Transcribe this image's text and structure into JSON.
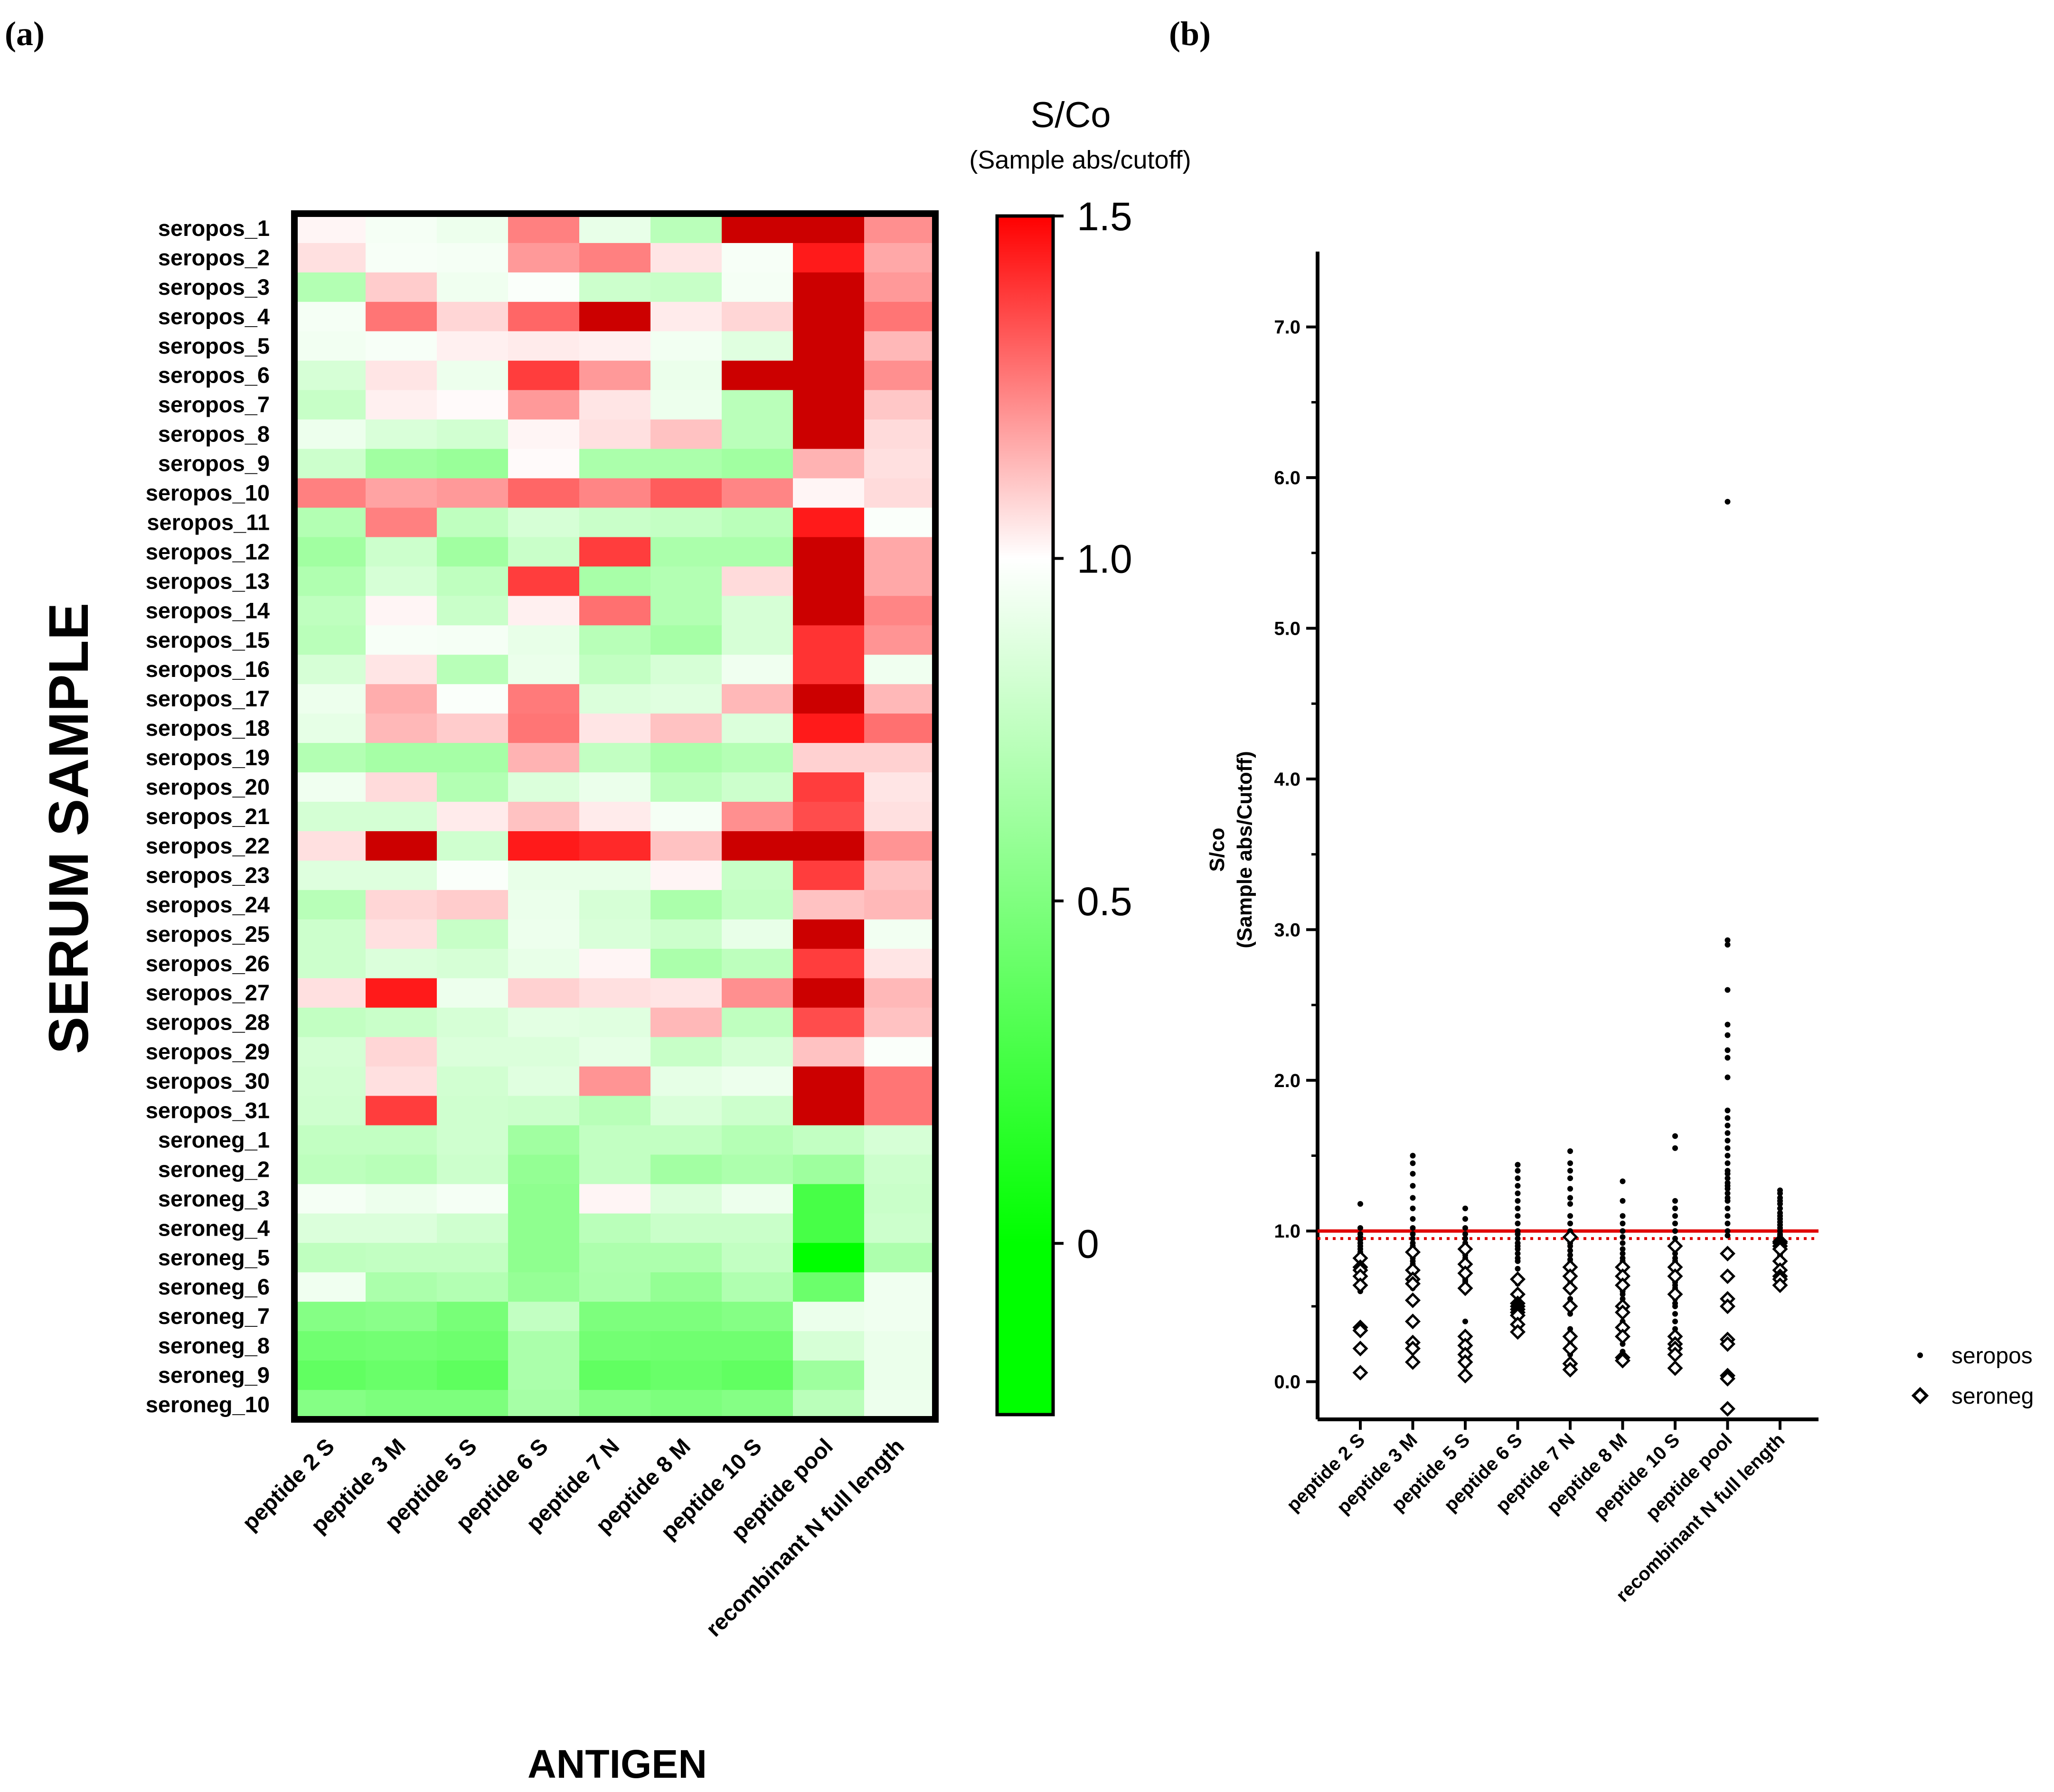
{
  "panel_labels": {
    "a": "(a)",
    "b": "(b)"
  },
  "chart_data": [
    {
      "type": "heatmap",
      "ylabel": "SERUM SAMPLE",
      "xlabel": "ANTIGEN",
      "colorbar": {
        "title": "S/Co",
        "subtitle": "(Sample abs/cutoff)",
        "ticks": [
          "1.5",
          "1.0",
          "0.5",
          "0"
        ],
        "tick_values": [
          1.5,
          1.0,
          0.5,
          0
        ],
        "range": [
          -0.25,
          1.5
        ],
        "colors": {
          "low": "#00ff00",
          "mid": "#ffffff",
          "high": "#ff0000",
          "over": "#cc0000"
        }
      },
      "columns": [
        "peptide 2 S",
        "peptide 3 M",
        "peptide 5 S",
        "peptide 6 S",
        "peptide 7 N",
        "peptide 8 M",
        "peptide 10 S",
        "peptide pool",
        "recombinant N full length"
      ],
      "rows": [
        "seropos_1",
        "seropos_2",
        "seropos_3",
        "seropos_4",
        "seropos_5",
        "seropos_6",
        "seropos_7",
        "seropos_8",
        "seropos_9",
        "seropos_10",
        "seropos_11",
        "seropos_12",
        "seropos_13",
        "seropos_14",
        "seropos_15",
        "seropos_16",
        "seropos_17",
        "seropos_18",
        "seropos_19",
        "seropos_20",
        "seropos_21",
        "seropos_22",
        "seropos_23",
        "seropos_24",
        "seropos_25",
        "seropos_26",
        "seropos_27",
        "seropos_28",
        "seropos_29",
        "seropos_30",
        "seropos_31",
        "seroneg_1",
        "seroneg_2",
        "seroneg_3",
        "seroneg_4",
        "seroneg_5",
        "seroneg_6",
        "seroneg_7",
        "seroneg_8",
        "seroneg_9",
        "seroneg_10"
      ],
      "values": [
        [
          1.02,
          0.96,
          0.93,
          1.25,
          0.91,
          0.73,
          1.6,
          1.6,
          1.22
        ],
        [
          1.06,
          0.97,
          0.96,
          1.2,
          1.25,
          1.05,
          0.97,
          1.45,
          1.17
        ],
        [
          0.7,
          1.1,
          0.94,
          0.98,
          0.8,
          0.78,
          0.96,
          1.6,
          1.2
        ],
        [
          0.96,
          1.27,
          1.08,
          1.3,
          1.6,
          1.04,
          1.08,
          1.6,
          1.27
        ],
        [
          0.95,
          0.97,
          1.03,
          1.04,
          1.03,
          0.95,
          0.88,
          1.6,
          1.14
        ],
        [
          0.84,
          1.05,
          0.93,
          1.38,
          1.2,
          0.92,
          1.6,
          1.6,
          1.22
        ],
        [
          0.78,
          1.03,
          1.01,
          1.2,
          1.05,
          0.93,
          0.73,
          1.6,
          1.11
        ],
        [
          0.93,
          0.85,
          0.82,
          1.02,
          1.06,
          1.12,
          0.73,
          1.6,
          1.07
        ],
        [
          0.8,
          0.63,
          0.6,
          1.01,
          0.67,
          0.67,
          0.63,
          1.15,
          1.06
        ],
        [
          1.25,
          1.18,
          1.2,
          1.3,
          1.24,
          1.32,
          1.24,
          1.02,
          1.07
        ],
        [
          0.7,
          1.25,
          0.75,
          0.84,
          0.79,
          0.77,
          0.73,
          1.45,
          0.98
        ],
        [
          0.63,
          0.8,
          0.63,
          0.79,
          1.38,
          0.67,
          0.67,
          1.6,
          1.17
        ],
        [
          0.69,
          0.84,
          0.75,
          1.38,
          0.66,
          0.7,
          1.07,
          1.6,
          1.17
        ],
        [
          0.75,
          1.02,
          0.79,
          1.03,
          1.28,
          0.7,
          0.84,
          1.6,
          1.24
        ],
        [
          0.73,
          0.97,
          0.96,
          0.91,
          0.72,
          0.65,
          0.84,
          1.4,
          1.21
        ],
        [
          0.84,
          1.05,
          0.72,
          0.92,
          0.76,
          0.84,
          0.94,
          1.4,
          0.94
        ],
        [
          0.93,
          1.16,
          0.98,
          1.26,
          0.86,
          0.88,
          1.14,
          1.6,
          1.14
        ],
        [
          0.9,
          1.14,
          1.1,
          1.27,
          1.05,
          1.12,
          0.86,
          1.45,
          1.28
        ],
        [
          0.7,
          0.65,
          0.65,
          1.15,
          0.76,
          0.67,
          0.71,
          1.09,
          1.09
        ],
        [
          0.94,
          1.07,
          0.7,
          0.86,
          0.92,
          0.74,
          0.8,
          1.38,
          1.05
        ],
        [
          0.83,
          0.83,
          1.04,
          1.12,
          1.04,
          0.96,
          1.22,
          1.35,
          1.06
        ],
        [
          1.06,
          1.6,
          0.81,
          1.45,
          1.42,
          1.12,
          1.6,
          1.6,
          1.21
        ],
        [
          0.87,
          0.87,
          0.98,
          0.91,
          0.91,
          1.02,
          0.78,
          1.38,
          1.12
        ],
        [
          0.72,
          1.08,
          1.1,
          0.92,
          0.84,
          0.67,
          0.76,
          1.12,
          1.14
        ],
        [
          0.8,
          1.06,
          0.78,
          0.93,
          0.85,
          0.8,
          0.91,
          1.6,
          0.95
        ],
        [
          0.8,
          0.86,
          0.84,
          0.91,
          1.02,
          0.67,
          0.74,
          1.38,
          1.05
        ],
        [
          1.06,
          1.45,
          0.93,
          1.09,
          1.06,
          1.05,
          1.22,
          1.6,
          1.14
        ],
        [
          0.76,
          0.79,
          0.84,
          0.89,
          0.88,
          1.14,
          0.75,
          1.35,
          1.12
        ],
        [
          0.83,
          1.08,
          0.86,
          0.86,
          0.9,
          0.78,
          0.84,
          1.12,
          0.98
        ],
        [
          0.82,
          1.06,
          0.82,
          0.88,
          1.21,
          0.9,
          0.93,
          1.6,
          1.27
        ],
        [
          0.81,
          1.38,
          0.81,
          0.8,
          0.72,
          0.85,
          0.8,
          1.6,
          1.27
        ],
        [
          0.76,
          0.76,
          0.81,
          0.63,
          0.76,
          0.76,
          0.71,
          0.76,
          0.84
        ],
        [
          0.74,
          0.72,
          0.8,
          0.58,
          0.76,
          0.64,
          0.68,
          0.62,
          0.8
        ],
        [
          0.96,
          0.93,
          0.96,
          0.56,
          1.02,
          0.86,
          0.93,
          0.28,
          0.79
        ],
        [
          0.86,
          0.86,
          0.81,
          0.56,
          0.73,
          0.79,
          0.79,
          0.28,
          0.8
        ],
        [
          0.75,
          0.76,
          0.76,
          0.56,
          0.68,
          0.68,
          0.76,
          0.0,
          0.68
        ],
        [
          0.94,
          0.67,
          0.7,
          0.59,
          0.67,
          0.58,
          0.69,
          0.42,
          0.94
        ],
        [
          0.52,
          0.54,
          0.47,
          0.76,
          0.49,
          0.49,
          0.52,
          0.92,
          0.94
        ],
        [
          0.44,
          0.45,
          0.43,
          0.67,
          0.45,
          0.44,
          0.44,
          0.84,
          0.92
        ],
        [
          0.38,
          0.41,
          0.37,
          0.67,
          0.38,
          0.41,
          0.38,
          0.62,
          0.92
        ],
        [
          0.52,
          0.49,
          0.49,
          0.65,
          0.52,
          0.49,
          0.52,
          0.73,
          0.93
        ]
      ]
    },
    {
      "type": "scatter",
      "ylabel": "S/co",
      "ylabel2": "(Sample abs/Cutoff)",
      "ylim": [
        -0.25,
        7.5
      ],
      "yticks": [
        "7.0",
        "6.0",
        "5.0",
        "4.0",
        "3.0",
        "2.0",
        "1.0",
        "0.0"
      ],
      "ytick_values": [
        7.0,
        6.0,
        5.0,
        4.0,
        3.0,
        2.0,
        1.0,
        0.0
      ],
      "cutoff": 1.0,
      "cutoff_dotted": 0.95,
      "categories": [
        "peptide 2 S",
        "peptide 3 M",
        "peptide 5 S",
        "peptide 6 S",
        "peptide 7 N",
        "peptide 8 M",
        "peptide 10 S",
        "peptide pool",
        "recombinant N full length"
      ],
      "legend": [
        "seropos",
        "seroneg"
      ],
      "series": [
        {
          "name": "seropos",
          "marker": "dot",
          "values": [
            [
              1.18,
              1.02,
              0.98,
              0.96,
              0.94,
              0.92,
              0.9,
              0.88,
              0.86,
              0.84,
              0.82,
              0.8,
              0.79,
              0.78,
              0.77,
              0.76,
              0.75,
              0.74,
              0.73,
              0.72,
              0.7,
              0.7,
              0.69,
              0.68,
              0.66,
              0.64,
              0.62,
              0.6,
              0.38,
              0.35,
              0.32
            ],
            [
              1.5,
              1.45,
              1.38,
              1.3,
              1.22,
              1.15,
              1.08,
              1.02,
              0.98,
              0.95,
              0.92,
              0.9,
              0.88,
              0.86,
              0.84,
              0.82,
              0.8,
              0.78,
              0.76,
              0.75,
              0.74,
              0.73,
              0.72,
              0.7,
              0.69,
              0.68,
              0.67,
              0.66,
              0.65,
              0.64,
              0.62
            ],
            [
              1.15,
              1.08,
              1.02,
              0.98,
              0.95,
              0.92,
              0.9,
              0.88,
              0.86,
              0.84,
              0.82,
              0.8,
              0.79,
              0.78,
              0.77,
              0.76,
              0.75,
              0.74,
              0.73,
              0.72,
              0.71,
              0.7,
              0.69,
              0.68,
              0.67,
              0.66,
              0.64,
              0.62,
              0.6,
              0.4,
              0.3
            ],
            [
              1.44,
              1.4,
              1.35,
              1.3,
              1.25,
              1.2,
              1.15,
              1.1,
              1.05,
              1.0,
              0.98,
              0.95,
              0.92,
              0.9,
              0.88,
              0.85,
              0.82,
              0.8,
              0.75,
              0.7,
              0.65,
              0.6,
              0.55,
              0.5,
              0.48,
              0.46,
              0.45,
              0.44,
              0.42,
              0.4,
              0.38
            ],
            [
              1.53,
              1.45,
              1.4,
              1.35,
              1.28,
              1.22,
              1.18,
              1.1,
              1.05,
              1.0,
              0.96,
              0.92,
              0.9,
              0.87,
              0.84,
              0.81,
              0.79,
              0.77,
              0.75,
              0.73,
              0.71,
              0.69,
              0.67,
              0.65,
              0.63,
              0.6,
              0.55,
              0.45,
              0.35,
              0.25,
              0.18
            ],
            [
              1.33,
              1.2,
              1.1,
              1.05,
              1.0,
              0.96,
              0.92,
              0.88,
              0.85,
              0.82,
              0.8,
              0.78,
              0.76,
              0.74,
              0.72,
              0.7,
              0.68,
              0.66,
              0.64,
              0.62,
              0.6,
              0.58,
              0.55,
              0.52,
              0.5,
              0.45,
              0.4,
              0.35,
              0.3,
              0.25,
              0.2
            ],
            [
              1.63,
              1.55,
              1.2,
              1.15,
              1.1,
              1.05,
              1.0,
              0.95,
              0.9,
              0.88,
              0.85,
              0.82,
              0.8,
              0.78,
              0.76,
              0.74,
              0.72,
              0.7,
              0.68,
              0.66,
              0.64,
              0.62,
              0.6,
              0.58,
              0.55,
              0.52,
              0.5,
              0.45,
              0.4,
              0.35,
              0.3
            ],
            [
              5.84,
              2.93,
              2.9,
              2.6,
              2.37,
              2.3,
              2.2,
              2.15,
              2.02,
              1.8,
              1.75,
              1.7,
              1.65,
              1.6,
              1.55,
              1.5,
              1.45,
              1.4,
              1.38,
              1.35,
              1.32,
              1.3,
              1.28,
              1.25,
              1.22,
              1.2,
              1.15,
              1.1,
              1.05,
              1.0,
              0.97
            ],
            [
              1.27,
              1.25,
              1.22,
              1.2,
              1.18,
              1.15,
              1.12,
              1.1,
              1.08,
              1.06,
              1.04,
              1.02,
              1.0,
              0.98,
              0.97,
              0.96,
              0.95,
              0.94,
              0.93,
              0.92,
              0.91,
              0.9,
              0.89,
              0.88,
              0.87,
              0.86,
              0.85,
              0.84,
              0.83,
              0.82,
              0.8
            ]
          ]
        },
        {
          "name": "seroneg",
          "marker": "open-diamond",
          "values": [
            [
              0.82,
              0.76,
              0.74,
              0.7,
              0.64,
              0.36,
              0.34,
              0.22,
              0.06
            ],
            [
              0.86,
              0.74,
              0.68,
              0.65,
              0.54,
              0.4,
              0.26,
              0.22,
              0.13
            ],
            [
              0.88,
              0.78,
              0.72,
              0.62,
              0.3,
              0.24,
              0.18,
              0.13,
              0.04
            ],
            [
              0.68,
              0.58,
              0.52,
              0.5,
              0.48,
              0.46,
              0.44,
              0.38,
              0.33
            ],
            [
              0.96,
              0.76,
              0.7,
              0.62,
              0.5,
              0.3,
              0.22,
              0.12,
              0.08
            ],
            [
              0.76,
              0.7,
              0.64,
              0.5,
              0.46,
              0.36,
              0.3,
              0.16,
              0.14
            ],
            [
              0.9,
              0.76,
              0.7,
              0.58,
              0.3,
              0.25,
              0.22,
              0.18,
              0.09
            ],
            [
              0.85,
              0.7,
              0.55,
              0.5,
              0.28,
              0.25,
              0.04,
              0.02,
              -0.18
            ],
            [
              0.93,
              0.92,
              0.9,
              0.88,
              0.8,
              0.74,
              0.7,
              0.68,
              0.64
            ]
          ]
        }
      ]
    }
  ]
}
